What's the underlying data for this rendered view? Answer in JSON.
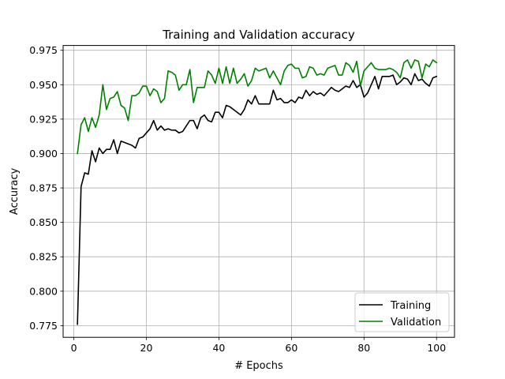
{
  "chart_data": {
    "type": "line",
    "title": "Training and Validation accuracy",
    "xlabel": "# Epochs",
    "ylabel": "Accuracy",
    "xlim": [
      -2.95,
      104.95
    ],
    "ylim": [
      0.7665,
      0.9785
    ],
    "xticks": [
      0,
      20,
      40,
      60,
      80,
      100
    ],
    "yticks": [
      0.775,
      0.8,
      0.825,
      0.85,
      0.875,
      0.9,
      0.925,
      0.95,
      0.975
    ],
    "xtick_labels": [
      "0",
      "20",
      "40",
      "60",
      "80",
      "100"
    ],
    "ytick_labels": [
      "0.775",
      "0.800",
      "0.825",
      "0.850",
      "0.875",
      "0.900",
      "0.925",
      "0.950",
      "0.975"
    ],
    "grid": true,
    "legend_position": "lower-right",
    "series": [
      {
        "name": "Training",
        "color": "#000000",
        "x": [
          1,
          2,
          3,
          4,
          5,
          6,
          7,
          8,
          9,
          10,
          11,
          12,
          13,
          14,
          15,
          16,
          17,
          18,
          19,
          20,
          21,
          22,
          23,
          24,
          25,
          26,
          27,
          28,
          29,
          30,
          31,
          32,
          33,
          34,
          35,
          36,
          37,
          38,
          39,
          40,
          41,
          42,
          43,
          44,
          45,
          46,
          47,
          48,
          49,
          50,
          51,
          52,
          53,
          54,
          55,
          56,
          57,
          58,
          59,
          60,
          61,
          62,
          63,
          64,
          65,
          66,
          67,
          68,
          69,
          70,
          71,
          72,
          73,
          74,
          75,
          76,
          77,
          78,
          79,
          80,
          81,
          82,
          83,
          84,
          85,
          86,
          87,
          88,
          89,
          90,
          91,
          92,
          93,
          94,
          95,
          96,
          97,
          98,
          99,
          100
        ],
        "values": [
          0.776,
          0.876,
          0.886,
          0.885,
          0.902,
          0.894,
          0.904,
          0.9,
          0.903,
          0.903,
          0.91,
          0.9,
          0.909,
          0.908,
          0.907,
          0.906,
          0.904,
          0.911,
          0.912,
          0.915,
          0.918,
          0.924,
          0.917,
          0.92,
          0.917,
          0.918,
          0.917,
          0.917,
          0.915,
          0.916,
          0.92,
          0.924,
          0.924,
          0.918,
          0.926,
          0.928,
          0.924,
          0.923,
          0.93,
          0.93,
          0.926,
          0.935,
          0.934,
          0.932,
          0.93,
          0.928,
          0.932,
          0.939,
          0.936,
          0.942,
          0.936,
          0.936,
          0.936,
          0.936,
          0.946,
          0.939,
          0.94,
          0.937,
          0.937,
          0.939,
          0.937,
          0.941,
          0.94,
          0.946,
          0.942,
          0.945,
          0.943,
          0.944,
          0.942,
          0.945,
          0.948,
          0.946,
          0.945,
          0.947,
          0.949,
          0.948,
          0.953,
          0.948,
          0.95,
          0.941,
          0.944,
          0.95,
          0.956,
          0.947,
          0.956,
          0.956,
          0.956,
          0.957,
          0.95,
          0.952,
          0.955,
          0.954,
          0.95,
          0.958,
          0.953,
          0.954,
          0.951,
          0.949,
          0.955,
          0.956
        ]
      },
      {
        "name": "Validation",
        "color": "#008000",
        "x": [
          1,
          2,
          3,
          4,
          5,
          6,
          7,
          8,
          9,
          10,
          11,
          12,
          13,
          14,
          15,
          16,
          17,
          18,
          19,
          20,
          21,
          22,
          23,
          24,
          25,
          26,
          27,
          28,
          29,
          30,
          31,
          32,
          33,
          34,
          35,
          36,
          37,
          38,
          39,
          40,
          41,
          42,
          43,
          44,
          45,
          46,
          47,
          48,
          49,
          50,
          51,
          52,
          53,
          54,
          55,
          56,
          57,
          58,
          59,
          60,
          61,
          62,
          63,
          64,
          65,
          66,
          67,
          68,
          69,
          70,
          71,
          72,
          73,
          74,
          75,
          76,
          77,
          78,
          79,
          80,
          81,
          82,
          83,
          84,
          85,
          86,
          87,
          88,
          89,
          90,
          91,
          92,
          93,
          94,
          95,
          96,
          97,
          98,
          99,
          100
        ],
        "values": [
          0.9,
          0.921,
          0.926,
          0.916,
          0.926,
          0.919,
          0.928,
          0.95,
          0.932,
          0.94,
          0.941,
          0.945,
          0.935,
          0.933,
          0.924,
          0.942,
          0.942,
          0.944,
          0.949,
          0.949,
          0.942,
          0.947,
          0.945,
          0.937,
          0.94,
          0.96,
          0.959,
          0.957,
          0.946,
          0.95,
          0.95,
          0.961,
          0.937,
          0.948,
          0.948,
          0.948,
          0.96,
          0.957,
          0.951,
          0.962,
          0.951,
          0.963,
          0.951,
          0.962,
          0.951,
          0.954,
          0.958,
          0.949,
          0.953,
          0.962,
          0.96,
          0.961,
          0.962,
          0.955,
          0.96,
          0.955,
          0.95,
          0.96,
          0.964,
          0.965,
          0.962,
          0.962,
          0.955,
          0.956,
          0.963,
          0.962,
          0.957,
          0.958,
          0.957,
          0.962,
          0.963,
          0.964,
          0.957,
          0.957,
          0.966,
          0.964,
          0.959,
          0.967,
          0.949,
          0.96,
          0.963,
          0.966,
          0.962,
          0.961,
          0.961,
          0.961,
          0.962,
          0.961,
          0.959,
          0.955,
          0.966,
          0.968,
          0.962,
          0.968,
          0.967,
          0.955,
          0.965,
          0.963,
          0.968,
          0.966
        ]
      }
    ]
  }
}
